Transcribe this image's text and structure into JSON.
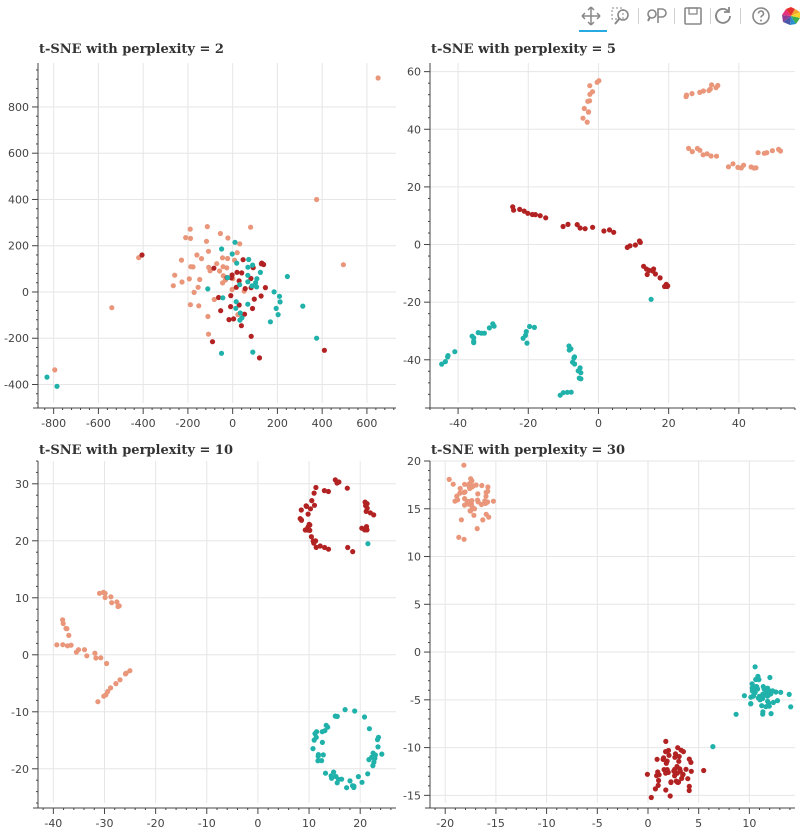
{
  "toolbar": {
    "tools": [
      {
        "name": "pan-icon",
        "active": true
      },
      {
        "name": "box-zoom-icon",
        "active": false
      },
      {
        "name": "wheel-zoom-icon",
        "active": false
      },
      {
        "name": "save-icon",
        "active": false
      },
      {
        "name": "reset-icon",
        "active": false
      },
      {
        "name": "help-icon",
        "active": false
      },
      {
        "name": "bokeh-logo-icon",
        "active": false
      }
    ]
  },
  "colors": {
    "class_a": "#e9967a",
    "class_b": "#b22222",
    "class_c": "#20b2aa",
    "grid": "#e6e6e6",
    "axis": "#444444"
  },
  "chart_data": [
    {
      "type": "scatter",
      "title": "t-SNE with perplexity = 2",
      "xlim": [
        -870,
        730
      ],
      "ylim": [
        -480,
        990
      ],
      "xticks": [
        -800,
        -600,
        -400,
        -200,
        0,
        200,
        400,
        600
      ],
      "yticks": [
        -400,
        -200,
        0,
        200,
        400,
        600,
        800
      ],
      "grid": true,
      "clusters": [
        {
          "group": "a",
          "spread": 0,
          "points": [
            [
              650,
              925
            ],
            [
              375,
              400
            ],
            [
              495,
              118
            ],
            [
              -540,
              -68
            ],
            [
              -795,
              -337
            ],
            [
              -420,
              148
            ],
            [
              -190,
              272
            ],
            [
              -210,
              235
            ],
            [
              -55,
              253
            ],
            [
              80,
              280
            ]
          ]
        },
        {
          "group": "a",
          "cx": -80,
          "cy": 80,
          "sx": 90,
          "sy": 100,
          "n": 40
        },
        {
          "group": "b",
          "spread": 0,
          "points": [
            [
              -405,
              160
            ],
            [
              410,
              -252
            ],
            [
              120,
              -285
            ],
            [
              -90,
              -215
            ]
          ]
        },
        {
          "group": "b",
          "cx": 40,
          "cy": -10,
          "sx": 60,
          "sy": 90,
          "n": 30
        },
        {
          "group": "c",
          "spread": 0,
          "points": [
            [
              -830,
              -368
            ],
            [
              -785,
              -408
            ],
            [
              375,
              -200
            ],
            [
              -50,
              -265
            ],
            [
              90,
              -260
            ]
          ]
        },
        {
          "group": "c",
          "cx": 80,
          "cy": -10,
          "sx": 110,
          "sy": 90,
          "n": 32
        }
      ]
    },
    {
      "type": "scatter",
      "title": "t-SNE with perplexity = 5",
      "xlim": [
        -48,
        56
      ],
      "ylim": [
        -55,
        63
      ],
      "xticks": [
        -40,
        -20,
        0,
        20,
        40
      ],
      "yticks": [
        -40,
        -20,
        0,
        20,
        40,
        60
      ],
      "grid": true,
      "clusters": [
        {
          "group": "a",
          "type": "line",
          "from": [
            -4,
            43
          ],
          "to": [
            -1,
            57
          ],
          "n": 12,
          "jitter": 1
        },
        {
          "group": "a",
          "type": "line",
          "from": [
            25,
            52
          ],
          "to": [
            35,
            55
          ],
          "n": 10,
          "jitter": 1.2
        },
        {
          "group": "a",
          "type": "line",
          "from": [
            25,
            33
          ],
          "to": [
            33,
            31
          ],
          "n": 8,
          "jitter": 1
        },
        {
          "group": "a",
          "type": "line",
          "from": [
            37,
            28
          ],
          "to": [
            45,
            26
          ],
          "n": 8,
          "jitter": 1
        },
        {
          "group": "a",
          "type": "line",
          "from": [
            46,
            32
          ],
          "to": [
            52,
            33
          ],
          "n": 6,
          "jitter": 0.8
        },
        {
          "group": "b",
          "type": "line",
          "from": [
            -25,
            13
          ],
          "to": [
            -15,
            9
          ],
          "n": 9,
          "jitter": 0.8
        },
        {
          "group": "b",
          "type": "line",
          "from": [
            -10,
            7
          ],
          "to": [
            5,
            5
          ],
          "n": 9,
          "jitter": 1
        },
        {
          "group": "b",
          "type": "line",
          "from": [
            8,
            -1
          ],
          "to": [
            12,
            1
          ],
          "n": 5,
          "jitter": 0.8
        },
        {
          "group": "b",
          "type": "line",
          "from": [
            13,
            -7
          ],
          "to": [
            20,
            -15
          ],
          "n": 12,
          "jitter": 1.4
        },
        {
          "group": "c",
          "type": "line",
          "from": [
            -44,
            -41
          ],
          "to": [
            -42,
            -37
          ],
          "n": 5,
          "jitter": 0.8
        },
        {
          "group": "c",
          "type": "line",
          "from": [
            -37,
            -33
          ],
          "to": [
            -30,
            -29
          ],
          "n": 10,
          "jitter": 1.4
        },
        {
          "group": "c",
          "type": "line",
          "from": [
            -22,
            -33
          ],
          "to": [
            -19,
            -29
          ],
          "n": 6,
          "jitter": 1
        },
        {
          "group": "c",
          "type": "line",
          "from": [
            -8,
            -35
          ],
          "to": [
            -5,
            -47
          ],
          "n": 12,
          "jitter": 0.8
        },
        {
          "group": "c",
          "type": "line",
          "from": [
            -11,
            -52
          ],
          "to": [
            -8,
            -51
          ],
          "n": 4,
          "jitter": 0.5
        },
        {
          "group": "c",
          "spread": 0,
          "points": [
            [
              15,
              -19
            ]
          ]
        }
      ]
    },
    {
      "type": "scatter",
      "title": "t-SNE with perplexity = 10",
      "xlim": [
        -43,
        27
      ],
      "ylim": [
        -26,
        34
      ],
      "xticks": [
        -40,
        -30,
        -20,
        -10,
        0,
        10,
        20
      ],
      "yticks": [
        -20,
        -10,
        0,
        10,
        20,
        30
      ],
      "grid": true,
      "clusters": [
        {
          "group": "b",
          "type": "ring",
          "cx": 15.5,
          "cy": 24,
          "rx": 6,
          "ry": 6,
          "n": 45,
          "jitter": 0.6
        },
        {
          "group": "c",
          "type": "ring",
          "cx": 17.5,
          "cy": -16,
          "rx": 6,
          "ry": 6,
          "n": 48,
          "jitter": 0.6
        },
        {
          "group": "c",
          "spread": 0,
          "points": [
            [
              21.5,
              19.5
            ]
          ]
        },
        {
          "group": "a",
          "type": "line",
          "from": [
            -31,
            11
          ],
          "to": [
            -27,
            8.5
          ],
          "n": 9,
          "jitter": 0.4
        },
        {
          "group": "a",
          "type": "line",
          "from": [
            -38,
            6
          ],
          "to": [
            -37,
            3.5
          ],
          "n": 5,
          "jitter": 0.4
        },
        {
          "group": "a",
          "type": "line",
          "from": [
            -39,
            2
          ],
          "to": [
            -30,
            -1
          ],
          "n": 12,
          "jitter": 0.6
        },
        {
          "group": "a",
          "type": "line",
          "from": [
            -31,
            -8
          ],
          "to": [
            -25,
            -2.5
          ],
          "n": 10,
          "jitter": 0.5
        }
      ]
    },
    {
      "type": "scatter",
      "title": "t-SNE with perplexity = 30",
      "xlim": [
        -21.5,
        14.5
      ],
      "ylim": [
        -15.8,
        20
      ],
      "xticks": [
        -20,
        -15,
        -10,
        -5,
        0,
        5,
        10
      ],
      "yticks": [
        -15,
        -10,
        -5,
        0,
        5,
        10,
        15,
        20
      ],
      "grid": true,
      "clusters": [
        {
          "group": "a",
          "cx": -17.5,
          "cy": 16,
          "sx": 1.1,
          "sy": 1.4,
          "n": 55
        },
        {
          "group": "b",
          "cx": 2.5,
          "cy": -12.2,
          "sx": 1.2,
          "sy": 1.2,
          "n": 55
        },
        {
          "group": "c",
          "cx": 11,
          "cy": -4.5,
          "sx": 1.1,
          "sy": 1.1,
          "n": 55
        },
        {
          "group": "c",
          "spread": 0,
          "points": [
            [
              6.4,
              -9.9
            ]
          ]
        }
      ]
    }
  ]
}
